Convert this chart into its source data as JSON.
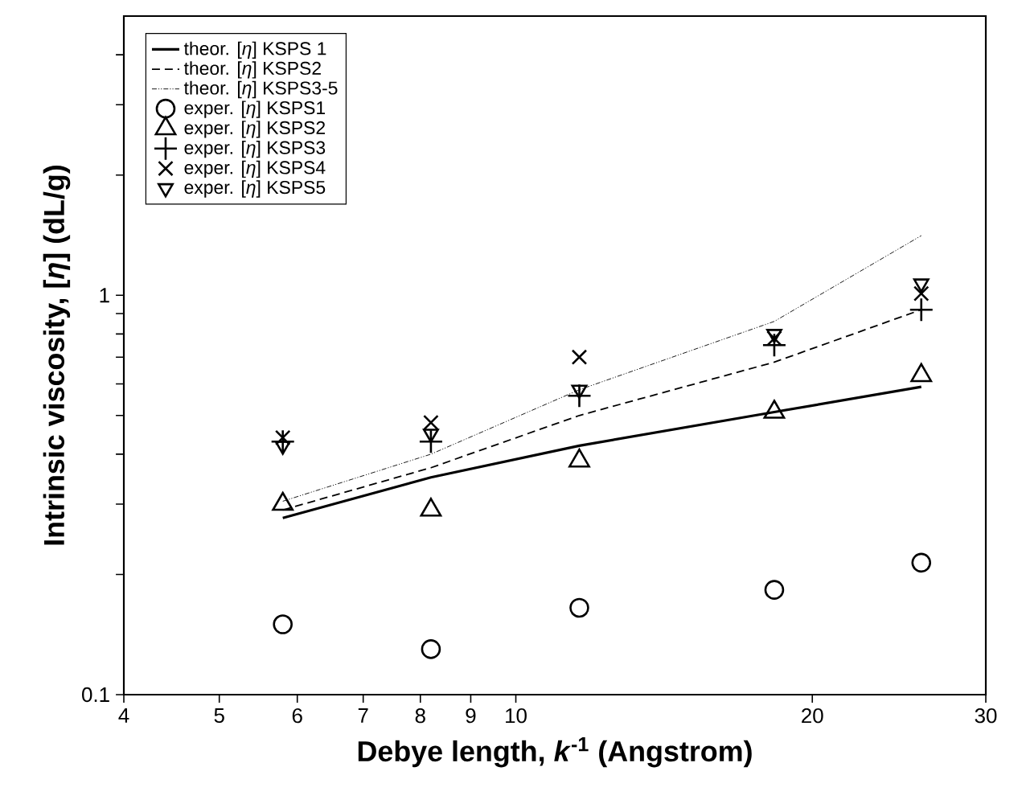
{
  "chart_data": {
    "type": "line",
    "xlabel": "Debye length, *k*$^{-1}$ (Angstrom)",
    "ylabel": "Intrinsic viscosity, [*η*] (dL/g)",
    "log": "xy",
    "xlim": [
      4,
      30
    ],
    "ylim": [
      0.1,
      5
    ],
    "xticks": [
      4,
      5,
      6,
      7,
      8,
      9,
      10,
      20,
      30
    ],
    "yticks": [
      0.1,
      {
        "value": 0.2,
        "label": null
      },
      {
        "value": 0.3,
        "label": null
      },
      {
        "value": 0.4,
        "label": null
      },
      {
        "value": 0.5,
        "label": null
      },
      {
        "value": 0.6,
        "label": null
      },
      {
        "value": 0.7,
        "label": null
      },
      {
        "value": 0.8,
        "label": null
      },
      {
        "value": 0.9,
        "label": null
      },
      1,
      {
        "value": 2,
        "label": null
      },
      {
        "value": 3,
        "label": null
      },
      {
        "value": 4,
        "label": null
      }
    ],
    "legend": "top left",
    "series": [
      {
        "name": "theor. [*η*] KSPS 1",
        "line_style": "solid",
        "color": "#000000",
        "x": [
          5.8,
          8.2,
          11.6,
          18.3,
          25.8
        ],
        "values": [
          0.277,
          0.35,
          0.42,
          0.51,
          0.59
        ]
      },
      {
        "name": "theor. [*η*] KSPS2",
        "line_style": "dashed",
        "color": "#000000",
        "x": [
          5.8,
          8.2,
          11.6,
          18.3,
          25.8
        ],
        "values": [
          0.29,
          0.37,
          0.5,
          0.68,
          0.92
        ]
      },
      {
        "name": "theor. [*η*] KSPS3-5",
        "line_style": "dashdot",
        "color": "#000000",
        "x": [
          5.8,
          8.2,
          11.6,
          18.3,
          25.8
        ],
        "values": [
          0.305,
          0.4,
          0.58,
          0.86,
          1.41
        ]
      },
      {
        "name": "exper. [*η*] KSPS1",
        "type": "scatter",
        "marker": "circle",
        "color": "#000000",
        "x": [
          5.8,
          8.2,
          11.6,
          18.3,
          25.8
        ],
        "values": [
          0.15,
          0.13,
          0.165,
          0.183,
          0.214
        ]
      },
      {
        "name": "exper. [*η*] KSPS2",
        "type": "scatter",
        "marker": "triangle",
        "color": "#000000",
        "x": [
          5.8,
          8.2,
          11.6,
          18.3,
          25.8
        ],
        "values": [
          0.3,
          0.29,
          0.385,
          0.51,
          0.63
        ]
      },
      {
        "name": "exper. [*η*] KSPS3",
        "type": "scatter",
        "marker": "plus",
        "color": "#000000",
        "x": [
          5.8,
          8.2,
          11.6,
          18.3,
          25.8
        ],
        "values": [
          0.43,
          0.43,
          0.56,
          0.75,
          0.92
        ]
      },
      {
        "name": "exper. [*η*] KSPS4",
        "type": "scatter",
        "marker": "cross",
        "color": "#000000",
        "x": [
          5.8,
          8.2,
          11.6,
          18.3,
          25.8
        ],
        "values": [
          0.44,
          0.48,
          0.7,
          0.78,
          1.01
        ]
      },
      {
        "name": "exper. [*η*] KSPS5",
        "type": "scatter",
        "marker": "triangle-down",
        "color": "#000000",
        "x": [
          5.8,
          8.2,
          11.6,
          18.3,
          25.8
        ],
        "values": [
          0.42,
          0.45,
          0.58,
          0.8,
          1.07
        ]
      }
    ]
  }
}
